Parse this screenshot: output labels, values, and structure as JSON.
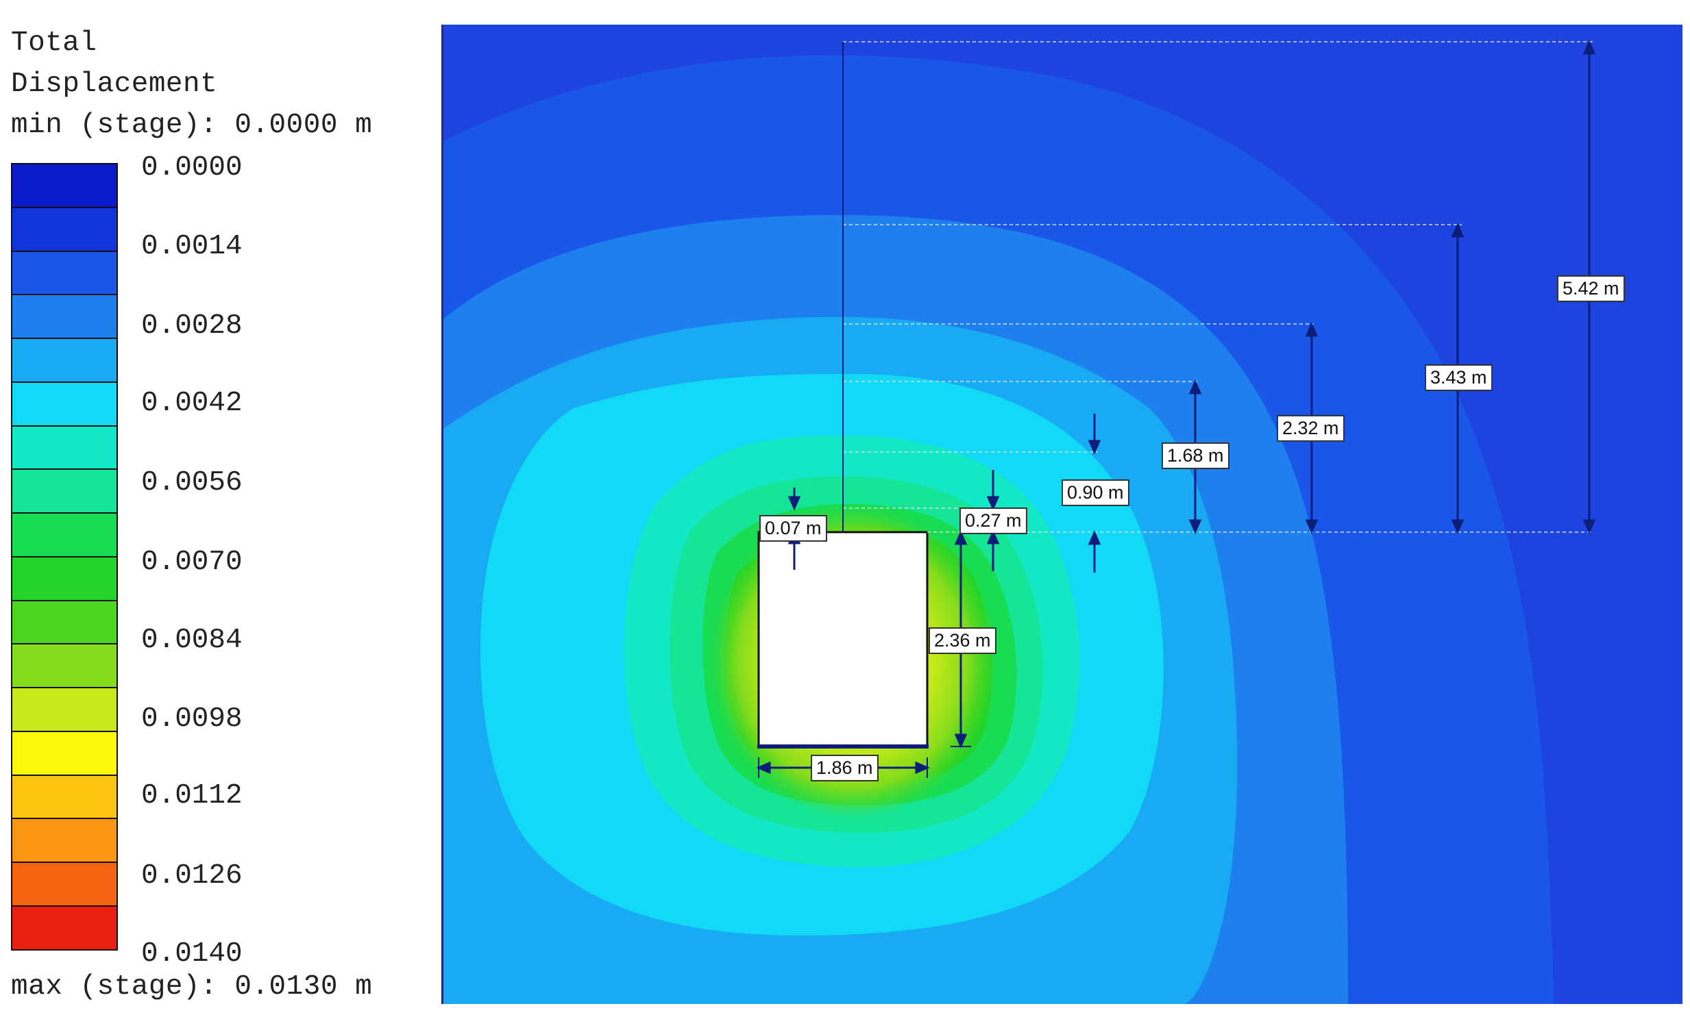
{
  "legend": {
    "title_line1": "Total",
    "title_line2": "Displacement",
    "min_label": "min (stage): 0.0000 m",
    "max_label": "max (stage): 0.0130 m",
    "ticks": [
      "0.0000",
      "0.0014",
      "0.0028",
      "0.0042",
      "0.0056",
      "0.0070",
      "0.0084",
      "0.0098",
      "0.0112",
      "0.0126",
      "0.0140"
    ],
    "colors": [
      "#0a1ccc",
      "#1236dc",
      "#1a56e8",
      "#1e80ee",
      "#18aaf2",
      "#12daf6",
      "#12e8c6",
      "#16e496",
      "#18dc52",
      "#22d42a",
      "#4cd61e",
      "#84dc1c",
      "#c6ea1a",
      "#fcf60a",
      "#fcc410",
      "#fa9614",
      "#f46410",
      "#ec2010"
    ]
  },
  "dimensions": {
    "d_007": "0.07 m",
    "d_027": "0.27 m",
    "d_090": "0.90 m",
    "d_168": "1.68 m",
    "d_232": "2.32 m",
    "d_343": "3.43 m",
    "d_542": "5.42 m",
    "d_236": "2.36 m",
    "d_186": "1.86 m"
  },
  "theme": {
    "background_blue": "#1e44e0",
    "dimension_line": "#0e1d7a",
    "opening_fill": "#ffffff"
  }
}
